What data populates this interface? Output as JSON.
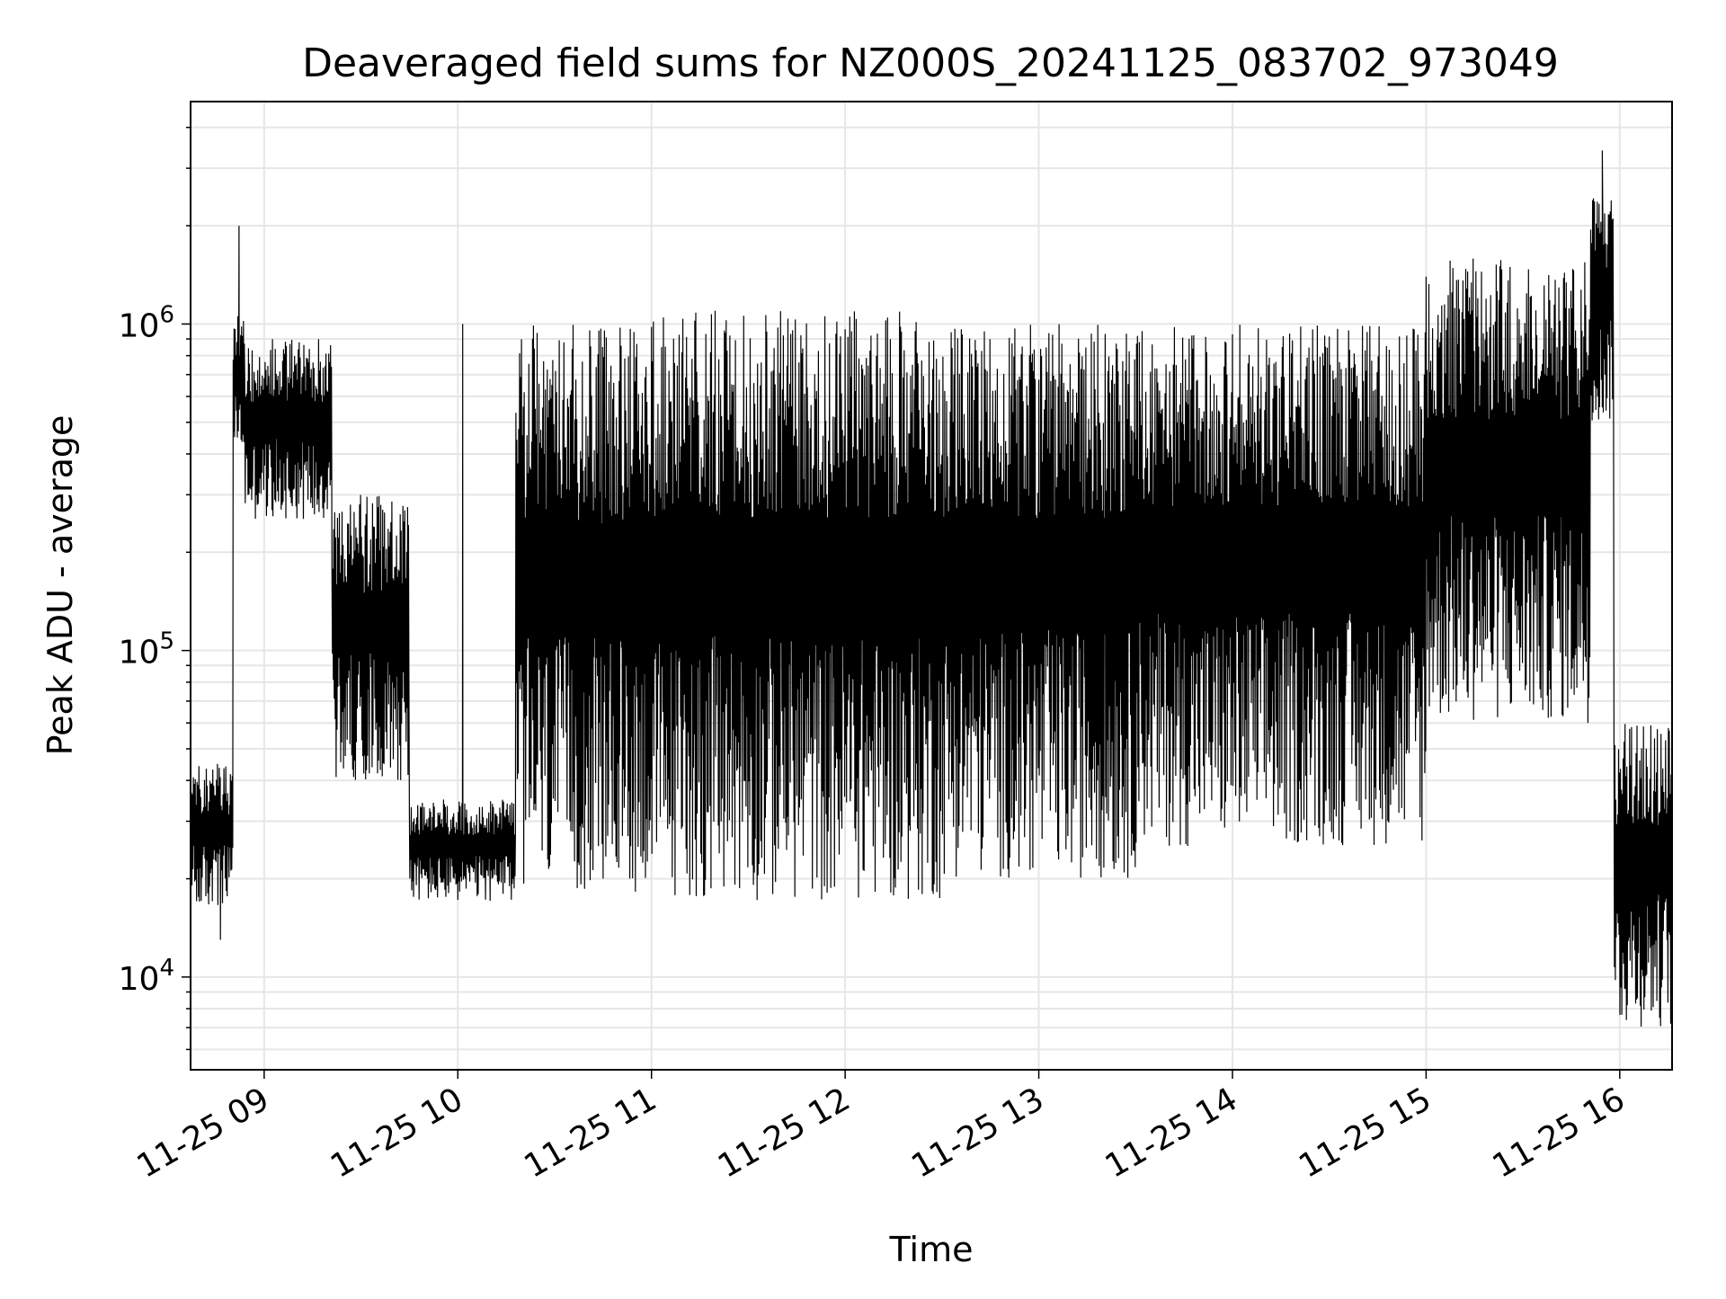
{
  "chart_data": {
    "type": "line",
    "title": "Deaveraged field sums for NZ000S_20241125_083702_973049",
    "xlabel": "Time",
    "ylabel": "Peak ADU - average",
    "yscale": "log",
    "ylim": [
      5200,
      4800000
    ],
    "xlim_hours": [
      8.62,
      16.27
    ],
    "grid": true,
    "x_tick_labels": [
      "11-25 09",
      "11-25 10",
      "11-25 11",
      "11-25 12",
      "11-25 13",
      "11-25 14",
      "11-25 15",
      "11-25 16"
    ],
    "x_tick_hours": [
      9,
      10,
      11,
      12,
      13,
      14,
      15,
      16
    ],
    "y_ticks": [
      {
        "value": 10000,
        "base": "10",
        "exp": "4"
      },
      {
        "value": 100000,
        "base": "10",
        "exp": "5"
      },
      {
        "value": 1000000,
        "base": "10",
        "exp": "6"
      }
    ],
    "series": [
      {
        "name": "deaveraged field sum",
        "color": "#000000",
        "segments": [
          {
            "from_hour": 8.62,
            "to_hour": 8.84,
            "low": 16000,
            "high": 45000,
            "dip_low": 13000
          },
          {
            "from_hour": 8.84,
            "to_hour": 8.9,
            "low": 400000,
            "high": 1100000,
            "spike": 2000000
          },
          {
            "from_hour": 8.9,
            "to_hour": 9.35,
            "low": 250000,
            "high": 900000
          },
          {
            "from_hour": 9.35,
            "to_hour": 9.75,
            "low": 40000,
            "high": 300000
          },
          {
            "from_hour": 9.75,
            "to_hour": 10.3,
            "low": 17000,
            "high": 35000,
            "spike": 1000000
          },
          {
            "from_hour": 10.3,
            "to_hour": 11.0,
            "low": 18000,
            "high": 1000000
          },
          {
            "from_hour": 11.0,
            "to_hour": 12.5,
            "low": 17000,
            "high": 1100000
          },
          {
            "from_hour": 12.5,
            "to_hour": 13.5,
            "low": 20000,
            "high": 1000000
          },
          {
            "from_hour": 13.5,
            "to_hour": 14.5,
            "low": 25000,
            "high": 1000000
          },
          {
            "from_hour": 14.5,
            "to_hour": 15.0,
            "low": 25000,
            "high": 1000000
          },
          {
            "from_hour": 15.0,
            "to_hour": 15.85,
            "low": 60000,
            "high": 1600000
          },
          {
            "from_hour": 15.85,
            "to_hour": 15.97,
            "low": 500000,
            "high": 2500000,
            "spike": 3400000
          },
          {
            "from_hour": 15.97,
            "to_hour": 16.27,
            "low": 7000,
            "high": 60000
          }
        ]
      }
    ]
  }
}
